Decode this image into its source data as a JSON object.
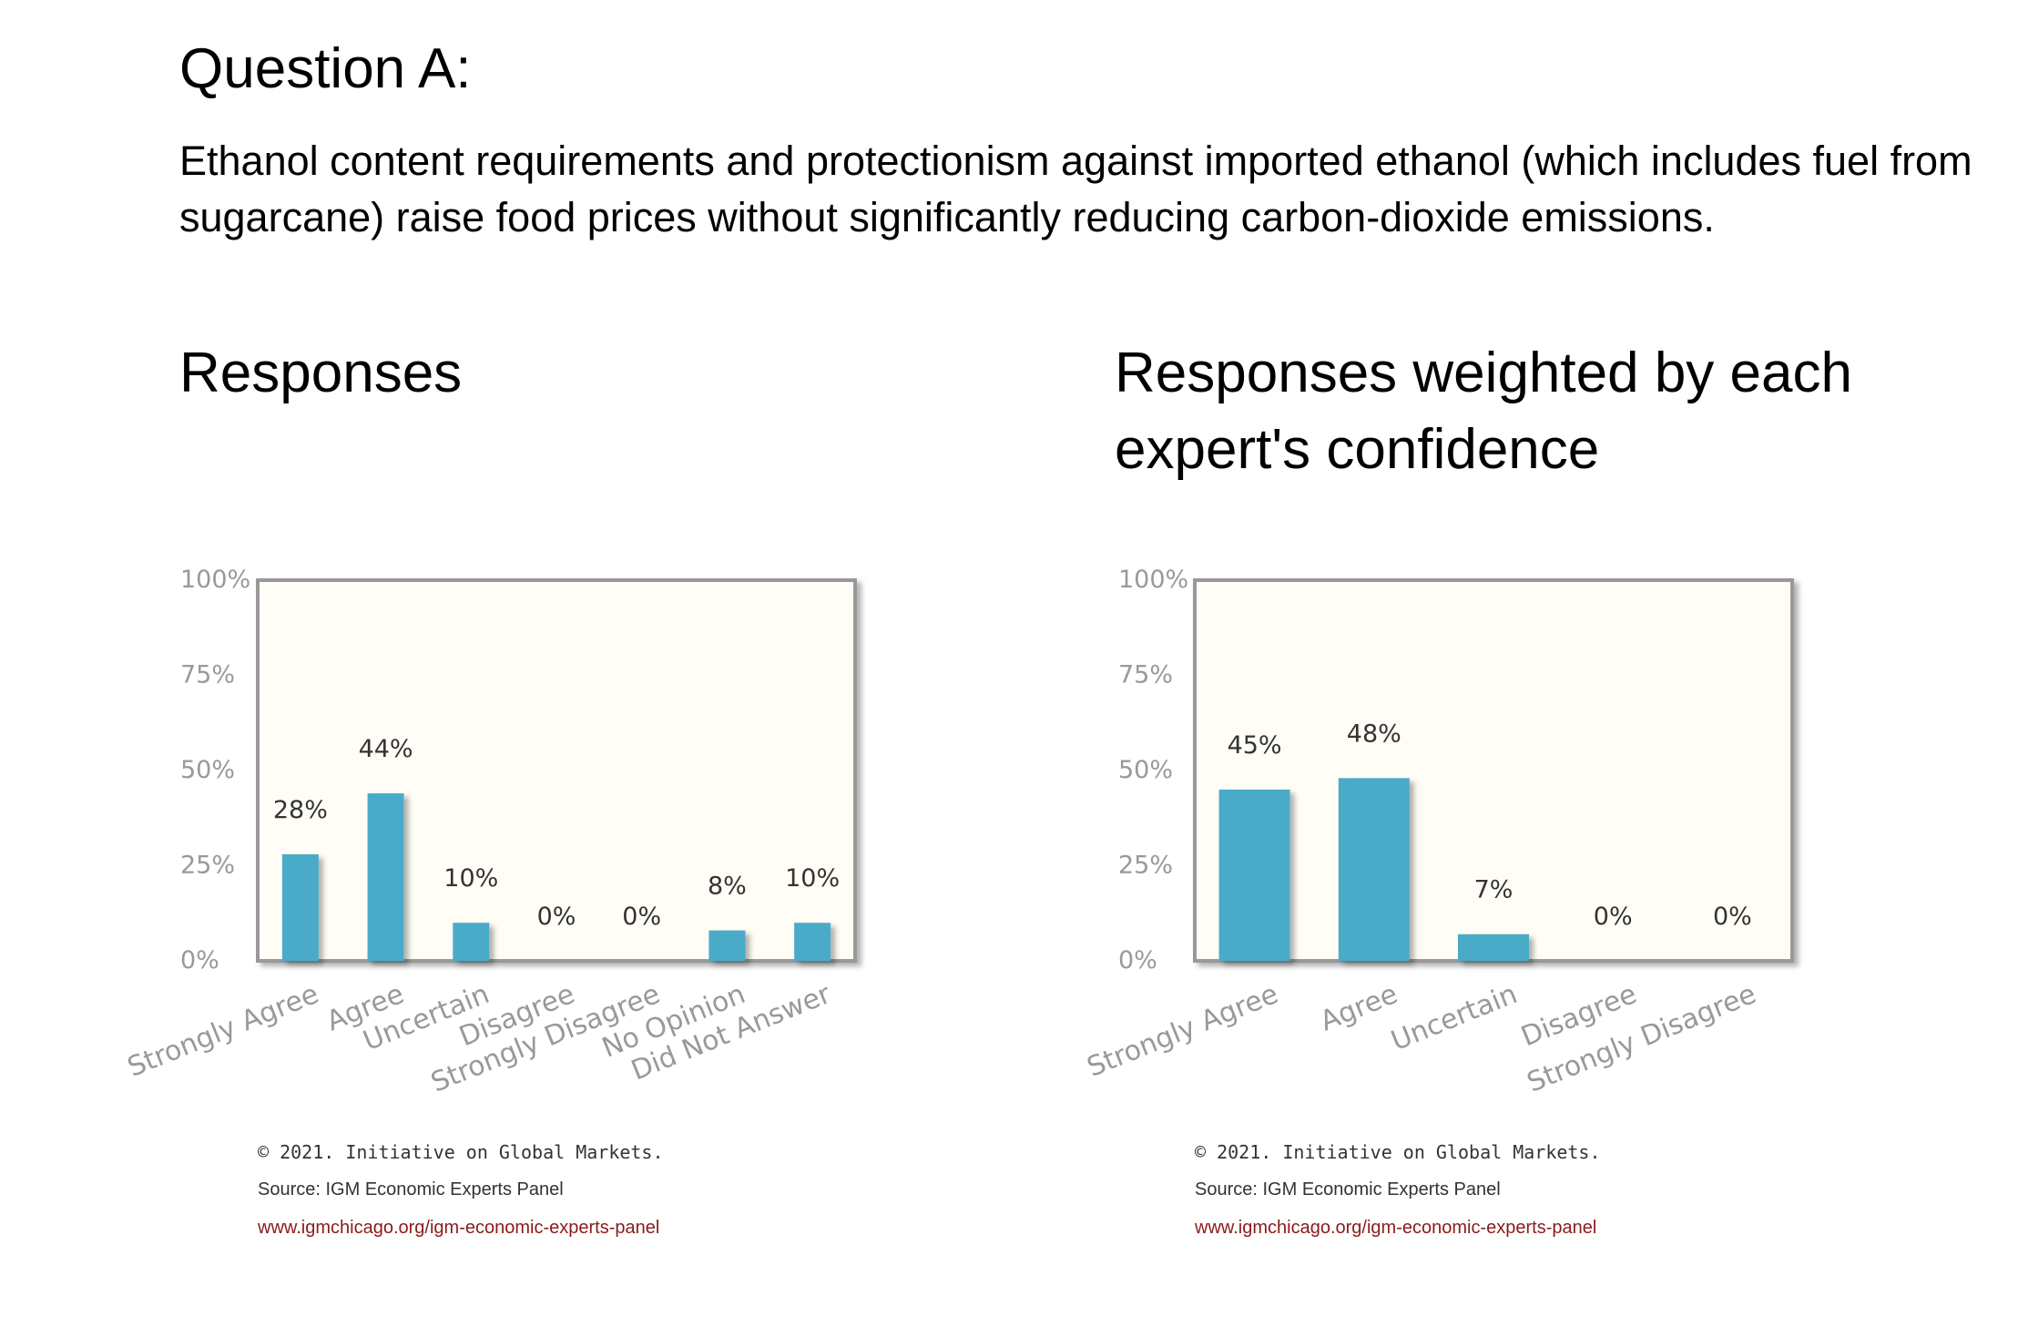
{
  "question": {
    "title": "Question A:",
    "text": "Ethanol content requirements and protectionism against imported ethanol (which includes fuel from sugarcane) raise food prices without significantly reducing carbon-dioxide emissions."
  },
  "colors": {
    "bar": "#4aabc8",
    "plot_background": "#fffdf6",
    "plot_border": "#999999",
    "tick_text": "#999999",
    "label_text": "#333333",
    "url": "#8b1a1a"
  },
  "footer": {
    "copyright": "© 2021. Initiative on Global Markets.",
    "source": "Source: IGM Economic Experts Panel",
    "url": "www.igmchicago.org/igm-economic-experts-panel"
  },
  "chart_data": [
    {
      "type": "bar",
      "title": "Responses",
      "categories": [
        "Strongly Agree",
        "Agree",
        "Uncertain",
        "Disagree",
        "Strongly Disagree",
        "No Opinion",
        "Did Not Answer"
      ],
      "values": [
        28,
        44,
        10,
        0,
        0,
        8,
        10
      ],
      "value_labels": [
        "28%",
        "44%",
        "10%",
        "0%",
        "0%",
        "8%",
        "10%"
      ],
      "yticks": [
        "0%",
        "25%",
        "50%",
        "75%",
        "100%"
      ],
      "ylim": [
        0,
        100
      ],
      "xlabel": "",
      "ylabel": "",
      "grid": false
    },
    {
      "type": "bar",
      "title": "Responses weighted by each expert's confidence",
      "categories": [
        "Strongly Agree",
        "Agree",
        "Uncertain",
        "Disagree",
        "Strongly Disagree"
      ],
      "values": [
        45,
        48,
        7,
        0,
        0
      ],
      "value_labels": [
        "45%",
        "48%",
        "7%",
        "0%",
        "0%"
      ],
      "yticks": [
        "0%",
        "25%",
        "50%",
        "75%",
        "100%"
      ],
      "ylim": [
        0,
        100
      ],
      "xlabel": "",
      "ylabel": "",
      "grid": false
    }
  ]
}
